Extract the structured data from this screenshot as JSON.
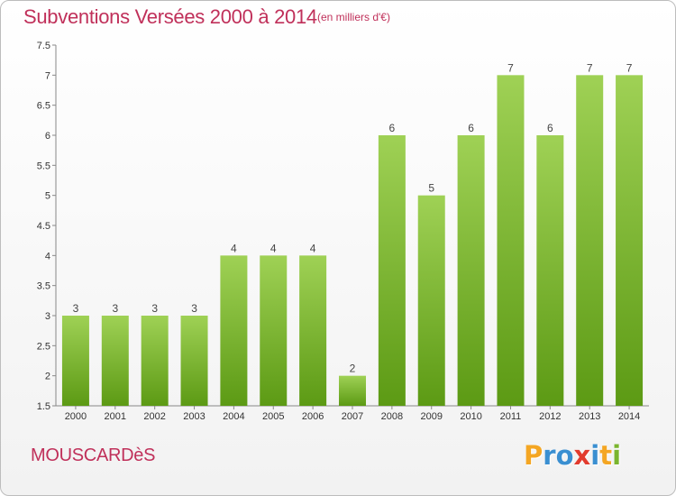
{
  "title": "Subventions Versées 2000 à 2014",
  "subtitle": "(en milliers d'€)",
  "commune": "MOUSCARDèS",
  "logo": {
    "letters": [
      "P",
      "r",
      "o",
      "x",
      "i",
      "t",
      "i"
    ],
    "colors": [
      "#f4a623",
      "#3a8fd1",
      "#3a8fd1",
      "#e23b2e",
      "#3a8fd1",
      "#f4a623",
      "#7ab52e"
    ]
  },
  "colors": {
    "accent": "#c0305a",
    "bar_top": "#9fd155",
    "bar_bottom": "#5c9a14"
  },
  "chart_data": {
    "type": "bar",
    "categories": [
      "2000",
      "2001",
      "2002",
      "2003",
      "2004",
      "2005",
      "2006",
      "2007",
      "2008",
      "2009",
      "2010",
      "2011",
      "2012",
      "2013",
      "2014"
    ],
    "values": [
      3,
      3,
      3,
      3,
      4,
      4,
      4,
      2,
      6,
      5,
      6,
      7,
      6,
      7,
      7
    ],
    "ylim": [
      1.5,
      7.5
    ],
    "yticks": [
      1.5,
      2,
      2.5,
      3,
      3.5,
      4,
      4.5,
      5,
      5.5,
      6,
      6.5,
      7,
      7.5
    ],
    "ytick_labels": [
      "1.5",
      "2",
      "2.5",
      "3",
      "3.5",
      "4",
      "4.5",
      "5",
      "5.5",
      "6",
      "6.5",
      "7",
      "7.5"
    ],
    "grid": false,
    "legend": "none"
  }
}
